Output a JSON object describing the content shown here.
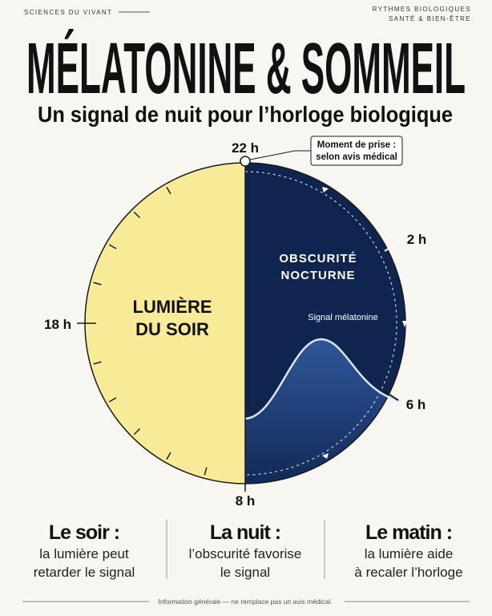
{
  "header": {
    "section": "SCIENCES DU VIVANT",
    "tags": [
      "RYTHMES BIOLOGIQUES",
      "SANTÉ & BIEN-ÊTRE"
    ],
    "title": "MÉLATONINE & SOMMEIL",
    "subtitle": "Un signal de nuit pour l’horloge biologique"
  },
  "clock": {
    "hours": {
      "top": "22 h",
      "right_upper": "2 h",
      "right_lower": "6 h",
      "bottom": "8 h",
      "left": "18 h"
    },
    "callout": [
      "Moment de prise :",
      "selon avis médical"
    ],
    "light_label": [
      "LUMIÈRE",
      "DU SOIR"
    ],
    "dark_label": [
      "OBSCURITÉ",
      "NOCTURNE"
    ],
    "curve_label": "Signal mélatonine"
  },
  "columns": [
    {
      "title": "Le soir :",
      "lines": [
        "la lumière peut",
        "retarder le signal"
      ]
    },
    {
      "title": "La nuit :",
      "lines": [
        "l’obscurité favorise",
        "le signal"
      ]
    },
    {
      "title": "Le matin :",
      "lines": [
        "la lumière aide",
        "à recaler l’horloge"
      ]
    }
  ],
  "footer": "Information générale — ne remplace pas un avis médical."
}
